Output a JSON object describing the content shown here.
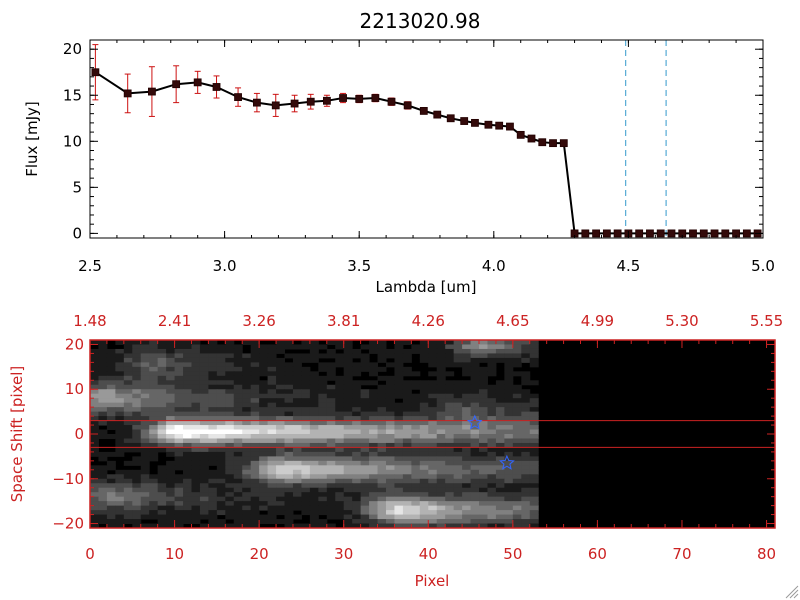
{
  "title": "2213020.98",
  "colors": {
    "axis_black": "#000000",
    "axis_red": "#cc2222",
    "errorbar": "#cc1111",
    "marker": "#220000",
    "marker_fill": "#330a0a",
    "dashed_line": "#3399cc",
    "star": "#3366ff",
    "red_line": "#cc2222"
  },
  "chart_data": [
    {
      "type": "line",
      "xlabel": "Lambda [um]",
      "ylabel": "Flux [mJy]",
      "xlim": [
        2.5,
        5.0
      ],
      "ylim": [
        -0.5,
        21
      ],
      "xticks": [
        2.5,
        3.0,
        3.5,
        4.0,
        4.5,
        5.0
      ],
      "xtick_labels": [
        "2.5",
        "3.0",
        "3.5",
        "4.0",
        "4.5",
        "5.0"
      ],
      "yticks": [
        0,
        5,
        10,
        15,
        20
      ],
      "ytick_labels": [
        "0",
        "5",
        "10",
        "15",
        "20"
      ],
      "grid": false,
      "vlines": [
        4.49,
        4.64
      ],
      "series": [
        {
          "x": [
            2.52,
            2.64,
            2.73,
            2.82,
            2.9,
            2.97,
            3.05,
            3.12,
            3.19,
            3.26,
            3.32,
            3.38,
            3.44,
            3.5,
            3.56,
            3.62,
            3.68,
            3.74,
            3.79,
            3.84,
            3.89,
            3.93,
            3.98,
            4.02,
            4.06,
            4.1,
            4.14,
            4.18,
            4.22,
            4.26,
            4.3,
            4.34,
            4.38,
            4.42,
            4.46,
            4.5,
            4.54,
            4.58,
            4.62,
            4.66,
            4.7,
            4.74,
            4.78,
            4.82,
            4.86,
            4.9,
            4.94,
            4.98
          ],
          "y": [
            17.5,
            15.2,
            15.4,
            16.2,
            16.4,
            15.9,
            14.8,
            14.2,
            13.9,
            14.1,
            14.3,
            14.4,
            14.7,
            14.6,
            14.7,
            14.3,
            13.9,
            13.3,
            12.9,
            12.5,
            12.2,
            12.0,
            11.8,
            11.7,
            11.6,
            10.7,
            10.3,
            9.9,
            9.8,
            9.8,
            0.0,
            0.0,
            0.0,
            0.0,
            0.0,
            0.0,
            0.0,
            0.0,
            0.0,
            0.0,
            0.0,
            0.0,
            0.0,
            0.0,
            0.0,
            0.0,
            0.0,
            0.0
          ],
          "yerr": [
            3.0,
            2.1,
            2.7,
            2.0,
            1.2,
            1.2,
            1.0,
            1.0,
            1.2,
            0.9,
            0.8,
            0.6,
            0.5,
            0.4,
            0.4,
            0.4,
            0.4,
            0.3,
            0.3,
            0.3,
            0.3,
            0.3,
            0.3,
            0.3,
            0.3,
            0.3,
            0.3,
            0.3,
            0.3,
            0.3,
            0,
            0,
            0,
            0,
            0,
            0,
            0,
            0,
            0,
            0,
            0,
            0,
            0,
            0,
            0,
            0,
            0,
            0
          ]
        }
      ]
    },
    {
      "type": "heatmap",
      "xlabel": "Pixel",
      "ylabel": "Space Shift [pixel]",
      "xlim": [
        0,
        81
      ],
      "ylim": [
        -21,
        21
      ],
      "xticks": [
        0,
        10,
        20,
        30,
        40,
        50,
        60,
        70,
        80
      ],
      "xtick_labels": [
        "0",
        "10",
        "20",
        "30",
        "40",
        "50",
        "60",
        "70",
        "80"
      ],
      "yticks": [
        -20,
        -10,
        0,
        10,
        20
      ],
      "ytick_labels": [
        "−20",
        "−10",
        "0",
        "10",
        "20"
      ],
      "top_tick_labels": [
        "1.48",
        "2.41",
        "3.26",
        "3.81",
        "4.26",
        "4.65",
        "4.99",
        "5.30",
        "5.55"
      ],
      "hlines": [
        3,
        -3
      ],
      "stars": [
        {
          "x": 45.5,
          "y": 2.5
        },
        {
          "x": 49.3,
          "y": -6.5
        }
      ],
      "sources": [
        {
          "x": 11,
          "y": 0.5,
          "peak": 1.0,
          "sx_len": 42,
          "sy": 2.0,
          "x_end": 53
        },
        {
          "x": 23,
          "y": -8.0,
          "peak": 0.75,
          "sx_len": 25,
          "sy": 2.2,
          "x_end": 53
        },
        {
          "x": 37,
          "y": -17.0,
          "peak": 0.8,
          "sx_len": 16,
          "sy": 2.2,
          "x_end": 53
        },
        {
          "x": 2,
          "y": 8.0,
          "peak": 0.55,
          "sx_len": 12,
          "sy": 2.4,
          "x_end": 53
        },
        {
          "x": 8,
          "y": 15.5,
          "peak": 0.3,
          "sx_len": 6,
          "sy": 2.5,
          "x_end": 53
        },
        {
          "x": 3,
          "y": -14.0,
          "peak": 0.4,
          "sx_len": 10,
          "sy": 2.3,
          "x_end": 53
        },
        {
          "x": 47,
          "y": 19.5,
          "peak": 0.5,
          "sx_len": 6,
          "sy": 1.5,
          "x_end": 53
        },
        {
          "x": 45,
          "y": 5.5,
          "peak": 0.25,
          "sx_len": 8,
          "sy": 2.0,
          "x_end": 53
        }
      ],
      "data_cutoff_pixel": 53
    }
  ]
}
